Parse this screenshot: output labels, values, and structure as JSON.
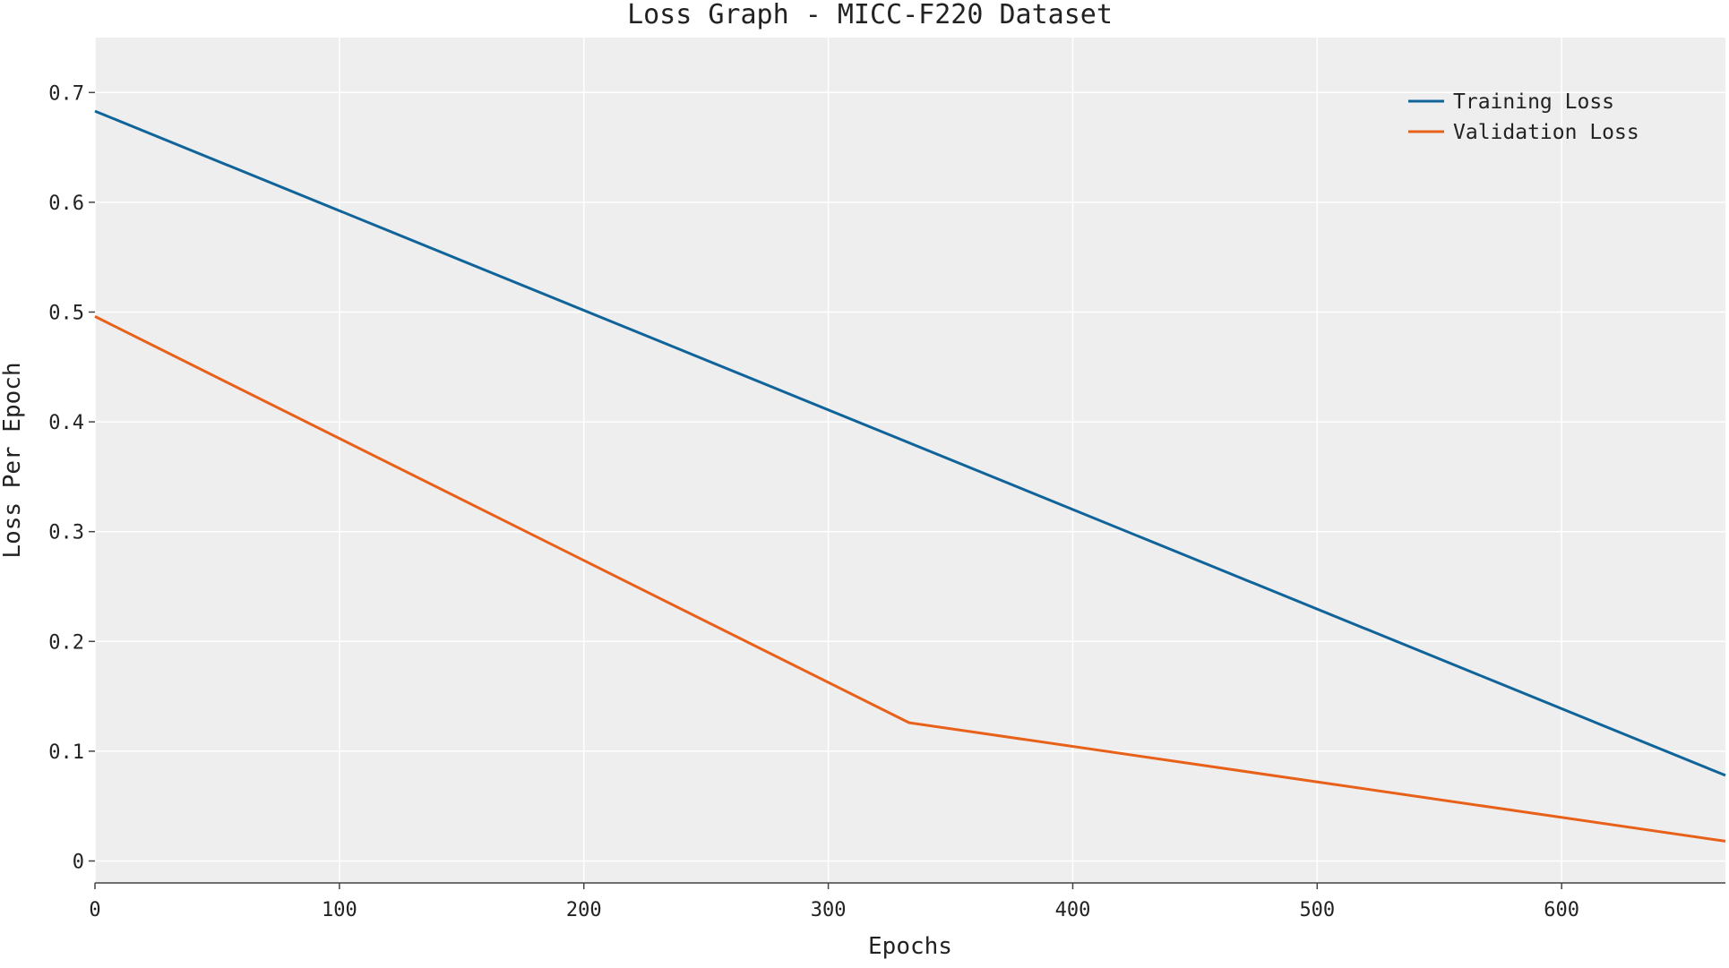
{
  "chart_data": {
    "type": "line",
    "title": "Loss Graph - MICC-F220 Dataset",
    "xlabel": "Epochs",
    "ylabel": "Loss Per Epoch",
    "xlim": [
      0,
      667
    ],
    "ylim": [
      -0.02,
      0.75
    ],
    "xticks": [
      0,
      100,
      200,
      300,
      400,
      500,
      600
    ],
    "yticks": [
      0,
      0.1,
      0.2,
      0.3,
      0.4,
      0.5,
      0.6,
      0.7
    ],
    "ytick_labels": [
      "0",
      "0.1",
      "0.2",
      "0.3",
      "0.4",
      "0.5",
      "0.6",
      "0.7"
    ],
    "grid": true,
    "legend_position": "top-right",
    "background": "#eeeeee",
    "series": [
      {
        "name": "Training Loss",
        "color": "#10649a",
        "x": [
          0,
          667
        ],
        "y": [
          0.683,
          0.078
        ]
      },
      {
        "name": "Validation Loss",
        "color": "#e8611a",
        "x": [
          0,
          333,
          667
        ],
        "y": [
          0.496,
          0.126,
          0.018
        ]
      }
    ]
  }
}
